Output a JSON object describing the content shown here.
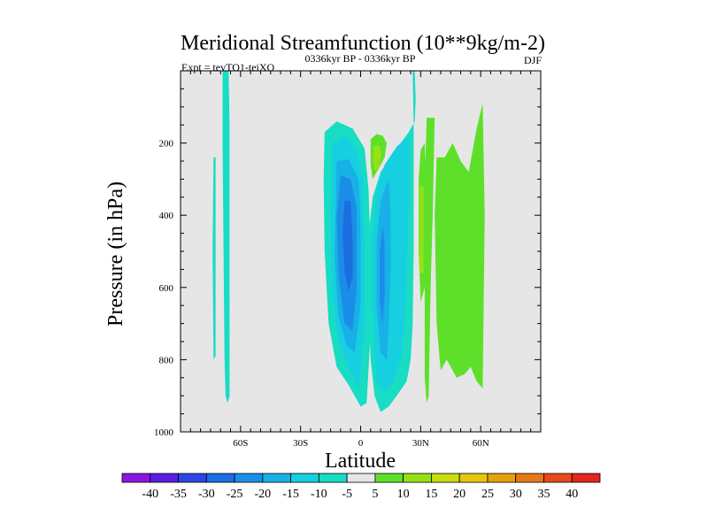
{
  "chart_data": {
    "type": "contour",
    "title": "Meridional Streamfunction (10**9kg/m-2)",
    "left_label": "Expt = tevTO1-teiXO",
    "center_label": "0336kyr BP - 0336kyr BP",
    "right_label": "DJF",
    "xlabel": "Latitude",
    "ylabel": "Pressure (in hPa)",
    "xlim": [
      -90,
      90
    ],
    "ylim": [
      1000,
      0
    ],
    "xticks": [
      {
        "value": -60,
        "label": "60S"
      },
      {
        "value": -30,
        "label": "30S"
      },
      {
        "value": 0,
        "label": "0"
      },
      {
        "value": 30,
        "label": "30N"
      },
      {
        "value": 60,
        "label": "60N"
      }
    ],
    "yticks": [
      {
        "value": 200,
        "label": "200"
      },
      {
        "value": 400,
        "label": "400"
      },
      {
        "value": 600,
        "label": "600"
      },
      {
        "value": 800,
        "label": "800"
      },
      {
        "value": 1000,
        "label": "1000"
      }
    ],
    "background_color": "#e6e6e6",
    "colorbar": {
      "levels": [
        -40,
        -35,
        -30,
        -25,
        -20,
        -15,
        -10,
        -5,
        5,
        10,
        15,
        20,
        25,
        30,
        35,
        40
      ],
      "level_labels": [
        "-40",
        "-35",
        "-30",
        "-25",
        "-20",
        "-15",
        "-10",
        "-5",
        "5",
        "10",
        "15",
        "20",
        "25",
        "30",
        "35",
        "40"
      ],
      "colors": [
        "#8a16e0",
        "#5a1ee0",
        "#2e46e6",
        "#1c6ee0",
        "#1a8ee6",
        "#18b0e6",
        "#16cfe0",
        "#18dcc4",
        "#e6e6e6",
        "#5ee02a",
        "#98e016",
        "#c8dc10",
        "#e6c60e",
        "#e6a00e",
        "#e6781a",
        "#e64a1a",
        "#e0261e"
      ]
    },
    "contour_regions": [
      {
        "name": "sh-polar-band",
        "value": -7,
        "points": [
          [
            -69,
            0
          ],
          [
            -66,
            0
          ],
          [
            -65.5,
            150
          ],
          [
            -65.5,
            400
          ],
          [
            -65.5,
            700
          ],
          [
            -65.5,
            900
          ],
          [
            -66.5,
            920
          ],
          [
            -67.5,
            900
          ],
          [
            -68,
            800
          ],
          [
            -68.5,
            500
          ],
          [
            -69,
            200
          ]
        ]
      },
      {
        "name": "sh-polar-sliver",
        "value": -7,
        "points": [
          [
            -73.5,
            240
          ],
          [
            -72.5,
            240
          ],
          [
            -72.5,
            790
          ],
          [
            -73.5,
            800
          ],
          [
            -74,
            500
          ]
        ]
      },
      {
        "name": "hadley-south-cell",
        "value": -7,
        "points": [
          [
            -18,
            170
          ],
          [
            -12,
            140
          ],
          [
            -4,
            160
          ],
          [
            2,
            215
          ],
          [
            4,
            330
          ],
          [
            5,
            520
          ],
          [
            5,
            720
          ],
          [
            3,
            920
          ],
          [
            0,
            930
          ],
          [
            -6,
            870
          ],
          [
            -12,
            820
          ],
          [
            -16,
            700
          ],
          [
            -18,
            500
          ],
          [
            -18.5,
            300
          ]
        ]
      },
      {
        "name": "hadley-south-l10",
        "value": -12,
        "points": [
          [
            -14,
            200
          ],
          [
            -8,
            180
          ],
          [
            -2,
            220
          ],
          [
            1,
            300
          ],
          [
            2,
            500
          ],
          [
            2,
            700
          ],
          [
            -1,
            880
          ],
          [
            -6,
            820
          ],
          [
            -11,
            750
          ],
          [
            -14,
            620
          ],
          [
            -15,
            430
          ]
        ]
      },
      {
        "name": "hadley-south-l15",
        "value": -17,
        "points": [
          [
            -12,
            250
          ],
          [
            -6,
            245
          ],
          [
            -1,
            300
          ],
          [
            0,
            420
          ],
          [
            0,
            650
          ],
          [
            -3,
            780
          ],
          [
            -7,
            760
          ],
          [
            -11,
            680
          ],
          [
            -13,
            520
          ]
        ]
      },
      {
        "name": "hadley-south-l20",
        "value": -22,
        "points": [
          [
            -10,
            290
          ],
          [
            -5,
            300
          ],
          [
            -2,
            380
          ],
          [
            -2,
            600
          ],
          [
            -4,
            720
          ],
          [
            -8,
            700
          ],
          [
            -11,
            570
          ],
          [
            -12,
            400
          ]
        ]
      },
      {
        "name": "hadley-south-l25",
        "value": -27,
        "points": [
          [
            -8,
            360
          ],
          [
            -5,
            360
          ],
          [
            -4,
            470
          ],
          [
            -4,
            570
          ],
          [
            -6,
            610
          ],
          [
            -8,
            560
          ],
          [
            -9,
            450
          ]
        ]
      },
      {
        "name": "hadley-north-cell",
        "value": -7,
        "points": [
          [
            26,
            0
          ],
          [
            27,
            0
          ],
          [
            27.5,
            80
          ],
          [
            27,
            140
          ],
          [
            24,
            170
          ],
          [
            20,
            200
          ],
          [
            15,
            240
          ],
          [
            10,
            280
          ],
          [
            6,
            350
          ],
          [
            4,
            450
          ],
          [
            4,
            650
          ],
          [
            5,
            800
          ],
          [
            7,
            900
          ],
          [
            10,
            945
          ],
          [
            14,
            930
          ],
          [
            18,
            900
          ],
          [
            23,
            860
          ],
          [
            25,
            800
          ],
          [
            26,
            700
          ],
          [
            26.5,
            500
          ],
          [
            26.5,
            300
          ],
          [
            26.5,
            150
          ]
        ]
      },
      {
        "name": "hadley-north-l10",
        "value": -12,
        "points": [
          [
            24,
            180
          ],
          [
            18,
            210
          ],
          [
            12,
            260
          ],
          [
            8,
            330
          ],
          [
            6,
            450
          ],
          [
            6,
            650
          ],
          [
            8,
            860
          ],
          [
            12,
            890
          ],
          [
            16,
            860
          ],
          [
            20,
            800
          ],
          [
            22,
            700
          ],
          [
            23,
            550
          ],
          [
            24,
            350
          ]
        ]
      },
      {
        "name": "hadley-north-l15",
        "value": -17,
        "points": [
          [
            14,
            300
          ],
          [
            10,
            360
          ],
          [
            8,
            470
          ],
          [
            8,
            650
          ],
          [
            10,
            780
          ],
          [
            13,
            800
          ],
          [
            14,
            700
          ],
          [
            15,
            550
          ],
          [
            15,
            400
          ]
        ]
      },
      {
        "name": "hadley-north-l20",
        "value": -22,
        "points": [
          [
            11,
            430
          ],
          [
            9.5,
            500
          ],
          [
            9.5,
            640
          ],
          [
            11,
            700
          ],
          [
            12,
            620
          ],
          [
            12,
            480
          ]
        ]
      },
      {
        "name": "ferrel-north-green",
        "value": 7,
        "points": [
          [
            33,
            130
          ],
          [
            37,
            130
          ],
          [
            36,
            400
          ],
          [
            35,
            600
          ],
          [
            34,
            900
          ],
          [
            33,
            920
          ],
          [
            32,
            850
          ],
          [
            32,
            600
          ],
          [
            32,
            300
          ]
        ]
      },
      {
        "name": "nh-midlat-green",
        "value": 7,
        "points": [
          [
            42,
            240
          ],
          [
            46,
            200
          ],
          [
            50,
            250
          ],
          [
            54,
            280
          ],
          [
            58,
            160
          ],
          [
            61,
            90
          ],
          [
            62,
            400
          ],
          [
            61,
            880
          ],
          [
            58,
            860
          ],
          [
            55,
            820
          ],
          [
            52,
            840
          ],
          [
            48,
            850
          ],
          [
            45,
            820
          ],
          [
            43,
            800
          ],
          [
            40,
            830
          ],
          [
            38,
            700
          ],
          [
            37,
            400
          ],
          [
            38,
            240
          ]
        ]
      },
      {
        "name": "nh-upper-small-green",
        "value": 7,
        "points": [
          [
            30,
            220
          ],
          [
            32,
            200
          ],
          [
            33,
            400
          ],
          [
            32,
            600
          ],
          [
            30,
            640
          ],
          [
            29,
            500
          ],
          [
            29,
            300
          ]
        ]
      },
      {
        "name": "nh-upper-yellow-band",
        "value": 12,
        "points": [
          [
            29.5,
            320
          ],
          [
            31.5,
            320
          ],
          [
            31.5,
            560
          ],
          [
            29.5,
            560
          ]
        ]
      },
      {
        "name": "tropical-upper-green",
        "value": 7,
        "points": [
          [
            5,
            190
          ],
          [
            8,
            175
          ],
          [
            11,
            180
          ],
          [
            13,
            200
          ],
          [
            12,
            240
          ],
          [
            9,
            270
          ],
          [
            6,
            300
          ],
          [
            5,
            260
          ]
        ]
      },
      {
        "name": "tropical-upper-yellow",
        "value": 12,
        "points": [
          [
            6.5,
            210
          ],
          [
            9,
            205
          ],
          [
            10.5,
            230
          ],
          [
            9,
            270
          ],
          [
            7,
            275
          ],
          [
            6,
            240
          ]
        ]
      }
    ]
  }
}
